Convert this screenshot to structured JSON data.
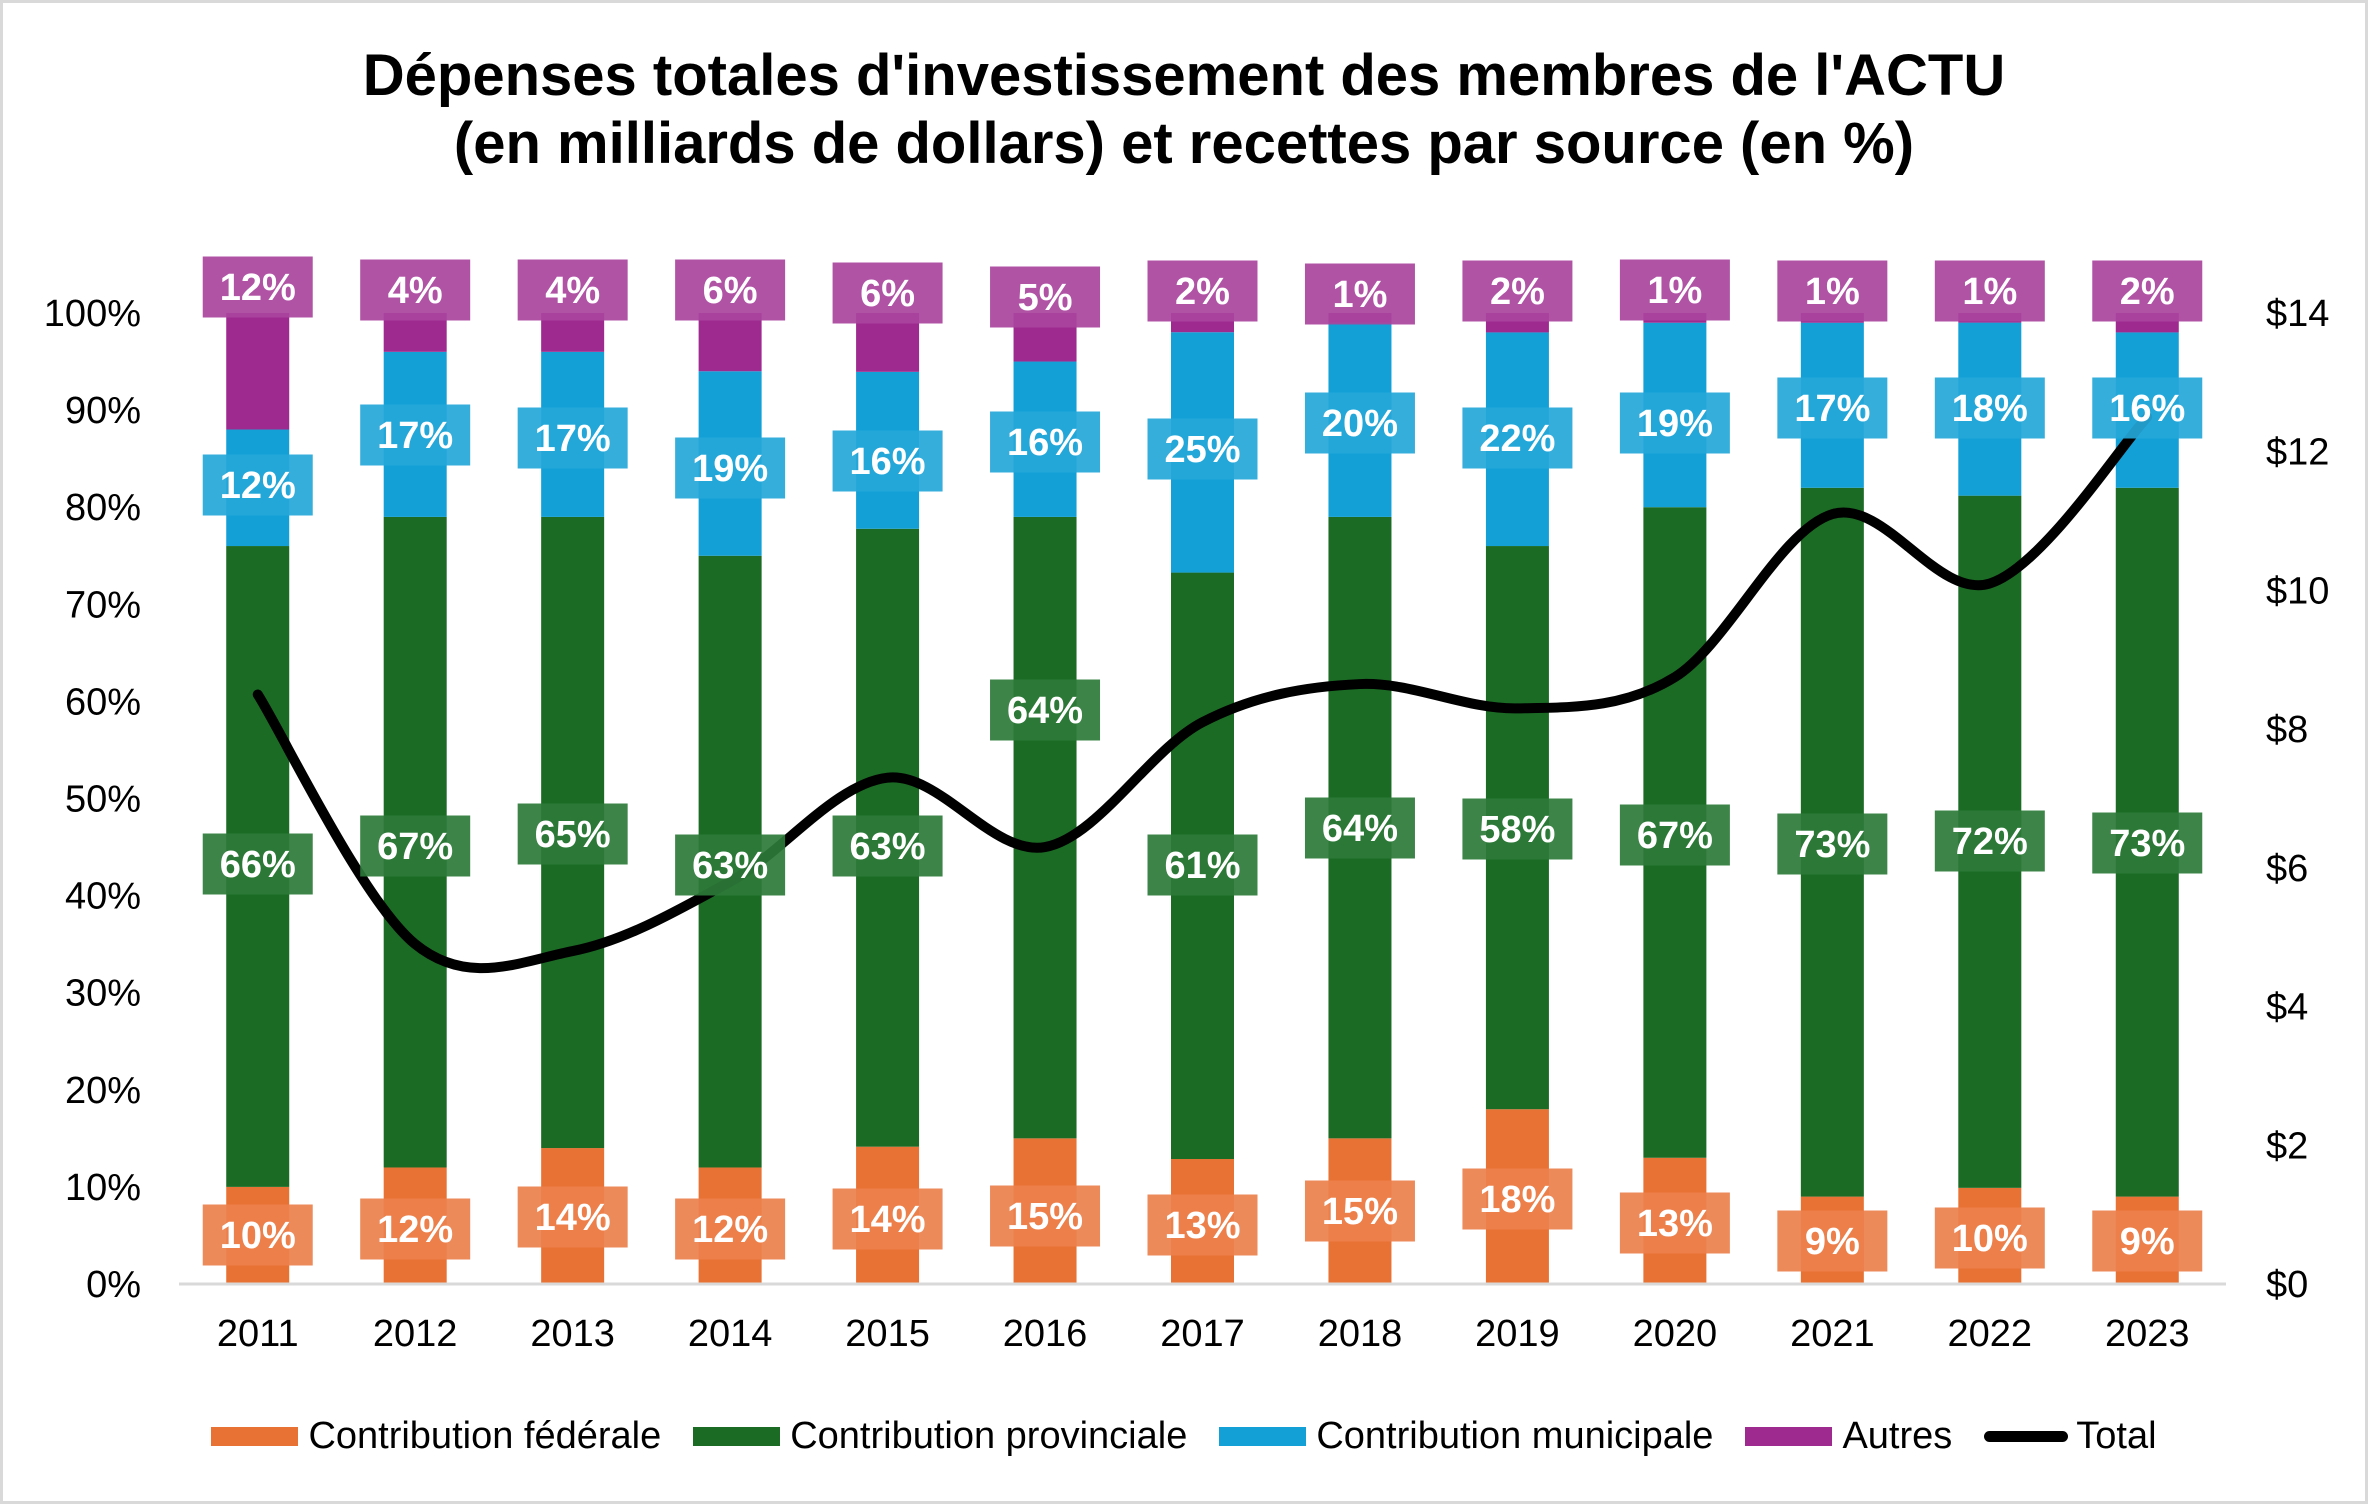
{
  "title": {
    "line1": "Dépenses totales d'investissement des membres de l'ACTU",
    "line2": "(en milliards de dollars) et recettes par source (en %)"
  },
  "chart_data": {
    "type": "bar",
    "subtype": "stacked-percent-bar-with-line",
    "title": "Dépenses totales d'investissement des membres de l'ACTU (en milliards de dollars) et recettes par source (en %)",
    "categories": [
      "2011",
      "2012",
      "2013",
      "2014",
      "2015",
      "2016",
      "2017",
      "2018",
      "2019",
      "2020",
      "2021",
      "2022",
      "2023"
    ],
    "series": [
      {
        "name": "Contribution fédérale",
        "axis": "left",
        "color": "#E87234",
        "label_color": "#EC804C",
        "values": [
          10,
          12,
          14,
          12,
          14,
          15,
          13,
          15,
          18,
          13,
          9,
          10,
          9
        ],
        "labels": [
          "10%",
          "12%",
          "14%",
          "12%",
          "14%",
          "15%",
          "13%",
          "15%",
          "18%",
          "13%",
          "9%",
          "10%",
          "9%"
        ]
      },
      {
        "name": "Contribution provinciale",
        "axis": "left",
        "color": "#1B6B25",
        "label_color": "#2D7A38",
        "values": [
          66,
          67,
          65,
          63,
          63,
          64,
          61,
          64,
          58,
          67,
          73,
          72,
          73
        ],
        "labels": [
          "66%",
          "67%",
          "65%",
          "63%",
          "63%",
          "64%",
          "61%",
          "64%",
          "58%",
          "67%",
          "73%",
          "72%",
          "73%"
        ]
      },
      {
        "name": "Contribution municipale",
        "axis": "left",
        "color": "#12A0D7",
        "label_color": "#25A7D9",
        "values": [
          12,
          17,
          17,
          19,
          16,
          16,
          25,
          20,
          22,
          19,
          17,
          18,
          16
        ],
        "labels": [
          "12%",
          "17%",
          "17%",
          "19%",
          "16%",
          "16%",
          "25%",
          "20%",
          "22%",
          "19%",
          "17%",
          "18%",
          "16%"
        ]
      },
      {
        "name": "Autres",
        "axis": "left",
        "color": "#9E2A8F",
        "label_color": "#A9449D",
        "values": [
          12,
          4,
          4,
          6,
          6,
          5,
          2,
          1,
          2,
          1,
          1,
          1,
          2
        ],
        "labels": [
          "12%",
          "4%",
          "4%",
          "6%",
          "6%",
          "5%",
          "2%",
          "1%",
          "2%",
          "1%",
          "1%",
          "1%",
          "2%"
        ]
      },
      {
        "name": "Total",
        "axis": "right",
        "type": "line",
        "smooth": true,
        "color": "#000000",
        "values": [
          8.5,
          4.9,
          4.8,
          5.8,
          7.3,
          6.3,
          8.1,
          8.65,
          8.3,
          8.75,
          11.1,
          10.1,
          12.5
        ]
      }
    ],
    "y_left": {
      "ylim": [
        0,
        100
      ],
      "ticks": [
        "0%",
        "10%",
        "20%",
        "30%",
        "40%",
        "50%",
        "60%",
        "70%",
        "80%",
        "90%",
        "100%"
      ]
    },
    "y_right": {
      "ylim": [
        0,
        14
      ],
      "ticks": [
        "$0",
        "$2",
        "$4",
        "$6",
        "$8",
        "$10",
        "$12",
        "$14"
      ]
    },
    "xlabel": "",
    "ylabel": "",
    "grid": false,
    "legend": "bottom",
    "axis_color": "#D9D9D9"
  },
  "legend": {
    "items": [
      {
        "label": "Contribution fédérale",
        "color": "#E87234",
        "kind": "box"
      },
      {
        "label": "Contribution provinciale",
        "color": "#1B6B25",
        "kind": "box"
      },
      {
        "label": "Contribution municipale",
        "color": "#12A0D7",
        "kind": "box"
      },
      {
        "label": "Autres",
        "color": "#9E2A8F",
        "kind": "box"
      },
      {
        "label": "Total",
        "color": "#000000",
        "kind": "line"
      }
    ]
  }
}
